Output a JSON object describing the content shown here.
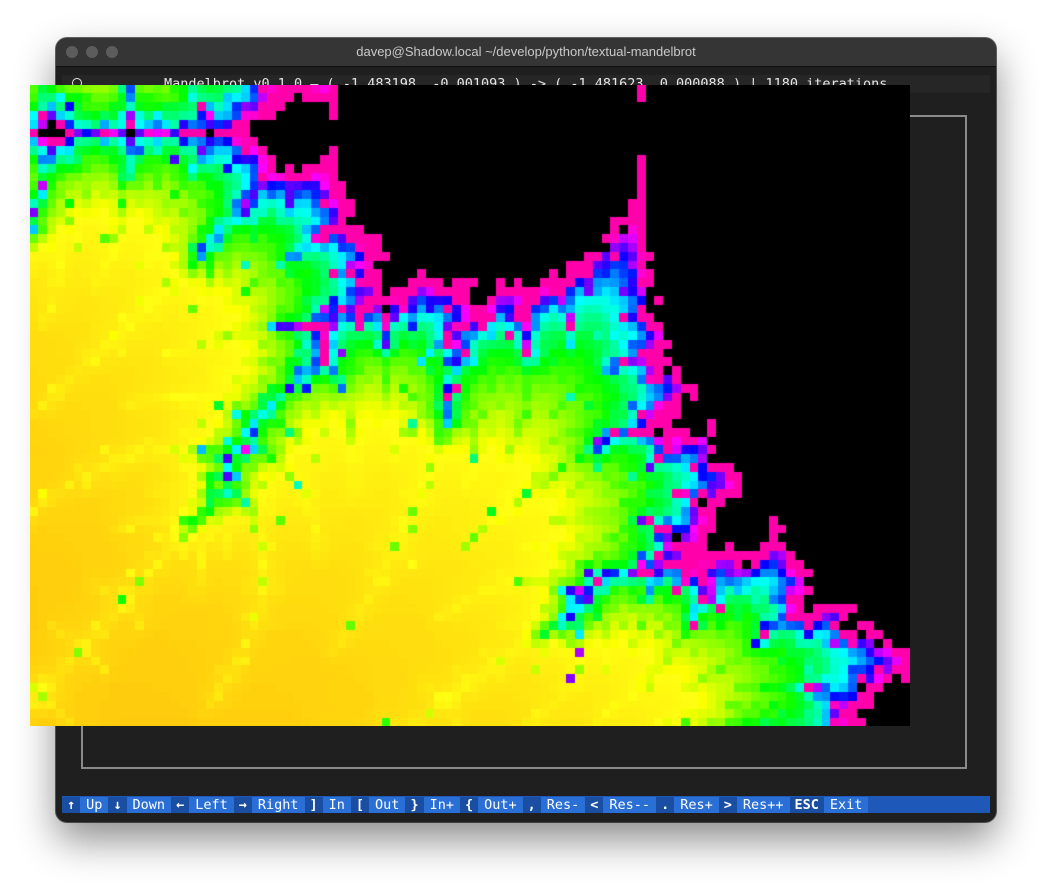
{
  "window": {
    "title": "davep@Shadow.local ~/develop/python/textual-mandelbrot"
  },
  "header": {
    "icon": "circle-icon",
    "title": "Mandelbrot v0.1.0 — ( -1.483198, -0.001093 ) -> ( -1.481623, 0.000088 ) | 1180 iterations"
  },
  "footer": {
    "bindings": [
      {
        "key": "↑",
        "label": "Up"
      },
      {
        "key": "↓",
        "label": "Down"
      },
      {
        "key": "←",
        "label": "Left"
      },
      {
        "key": "→",
        "label": "Right"
      },
      {
        "key": "]",
        "label": "In"
      },
      {
        "key": "[",
        "label": "Out"
      },
      {
        "key": "}",
        "label": "In+"
      },
      {
        "key": "{",
        "label": "Out+"
      },
      {
        "key": ",",
        "label": "Res-"
      },
      {
        "key": "<",
        "label": "Res--"
      },
      {
        "key": ".",
        "label": "Res+"
      },
      {
        "key": ">",
        "label": "Res++"
      },
      {
        "key": "ESC",
        "label": "Exit"
      }
    ]
  },
  "colors": {
    "footer_bg": "#1e58b8",
    "footer_key": "#1a4ea3",
    "footer_desc": "#2a6fd6",
    "set_color": "#000000"
  }
}
